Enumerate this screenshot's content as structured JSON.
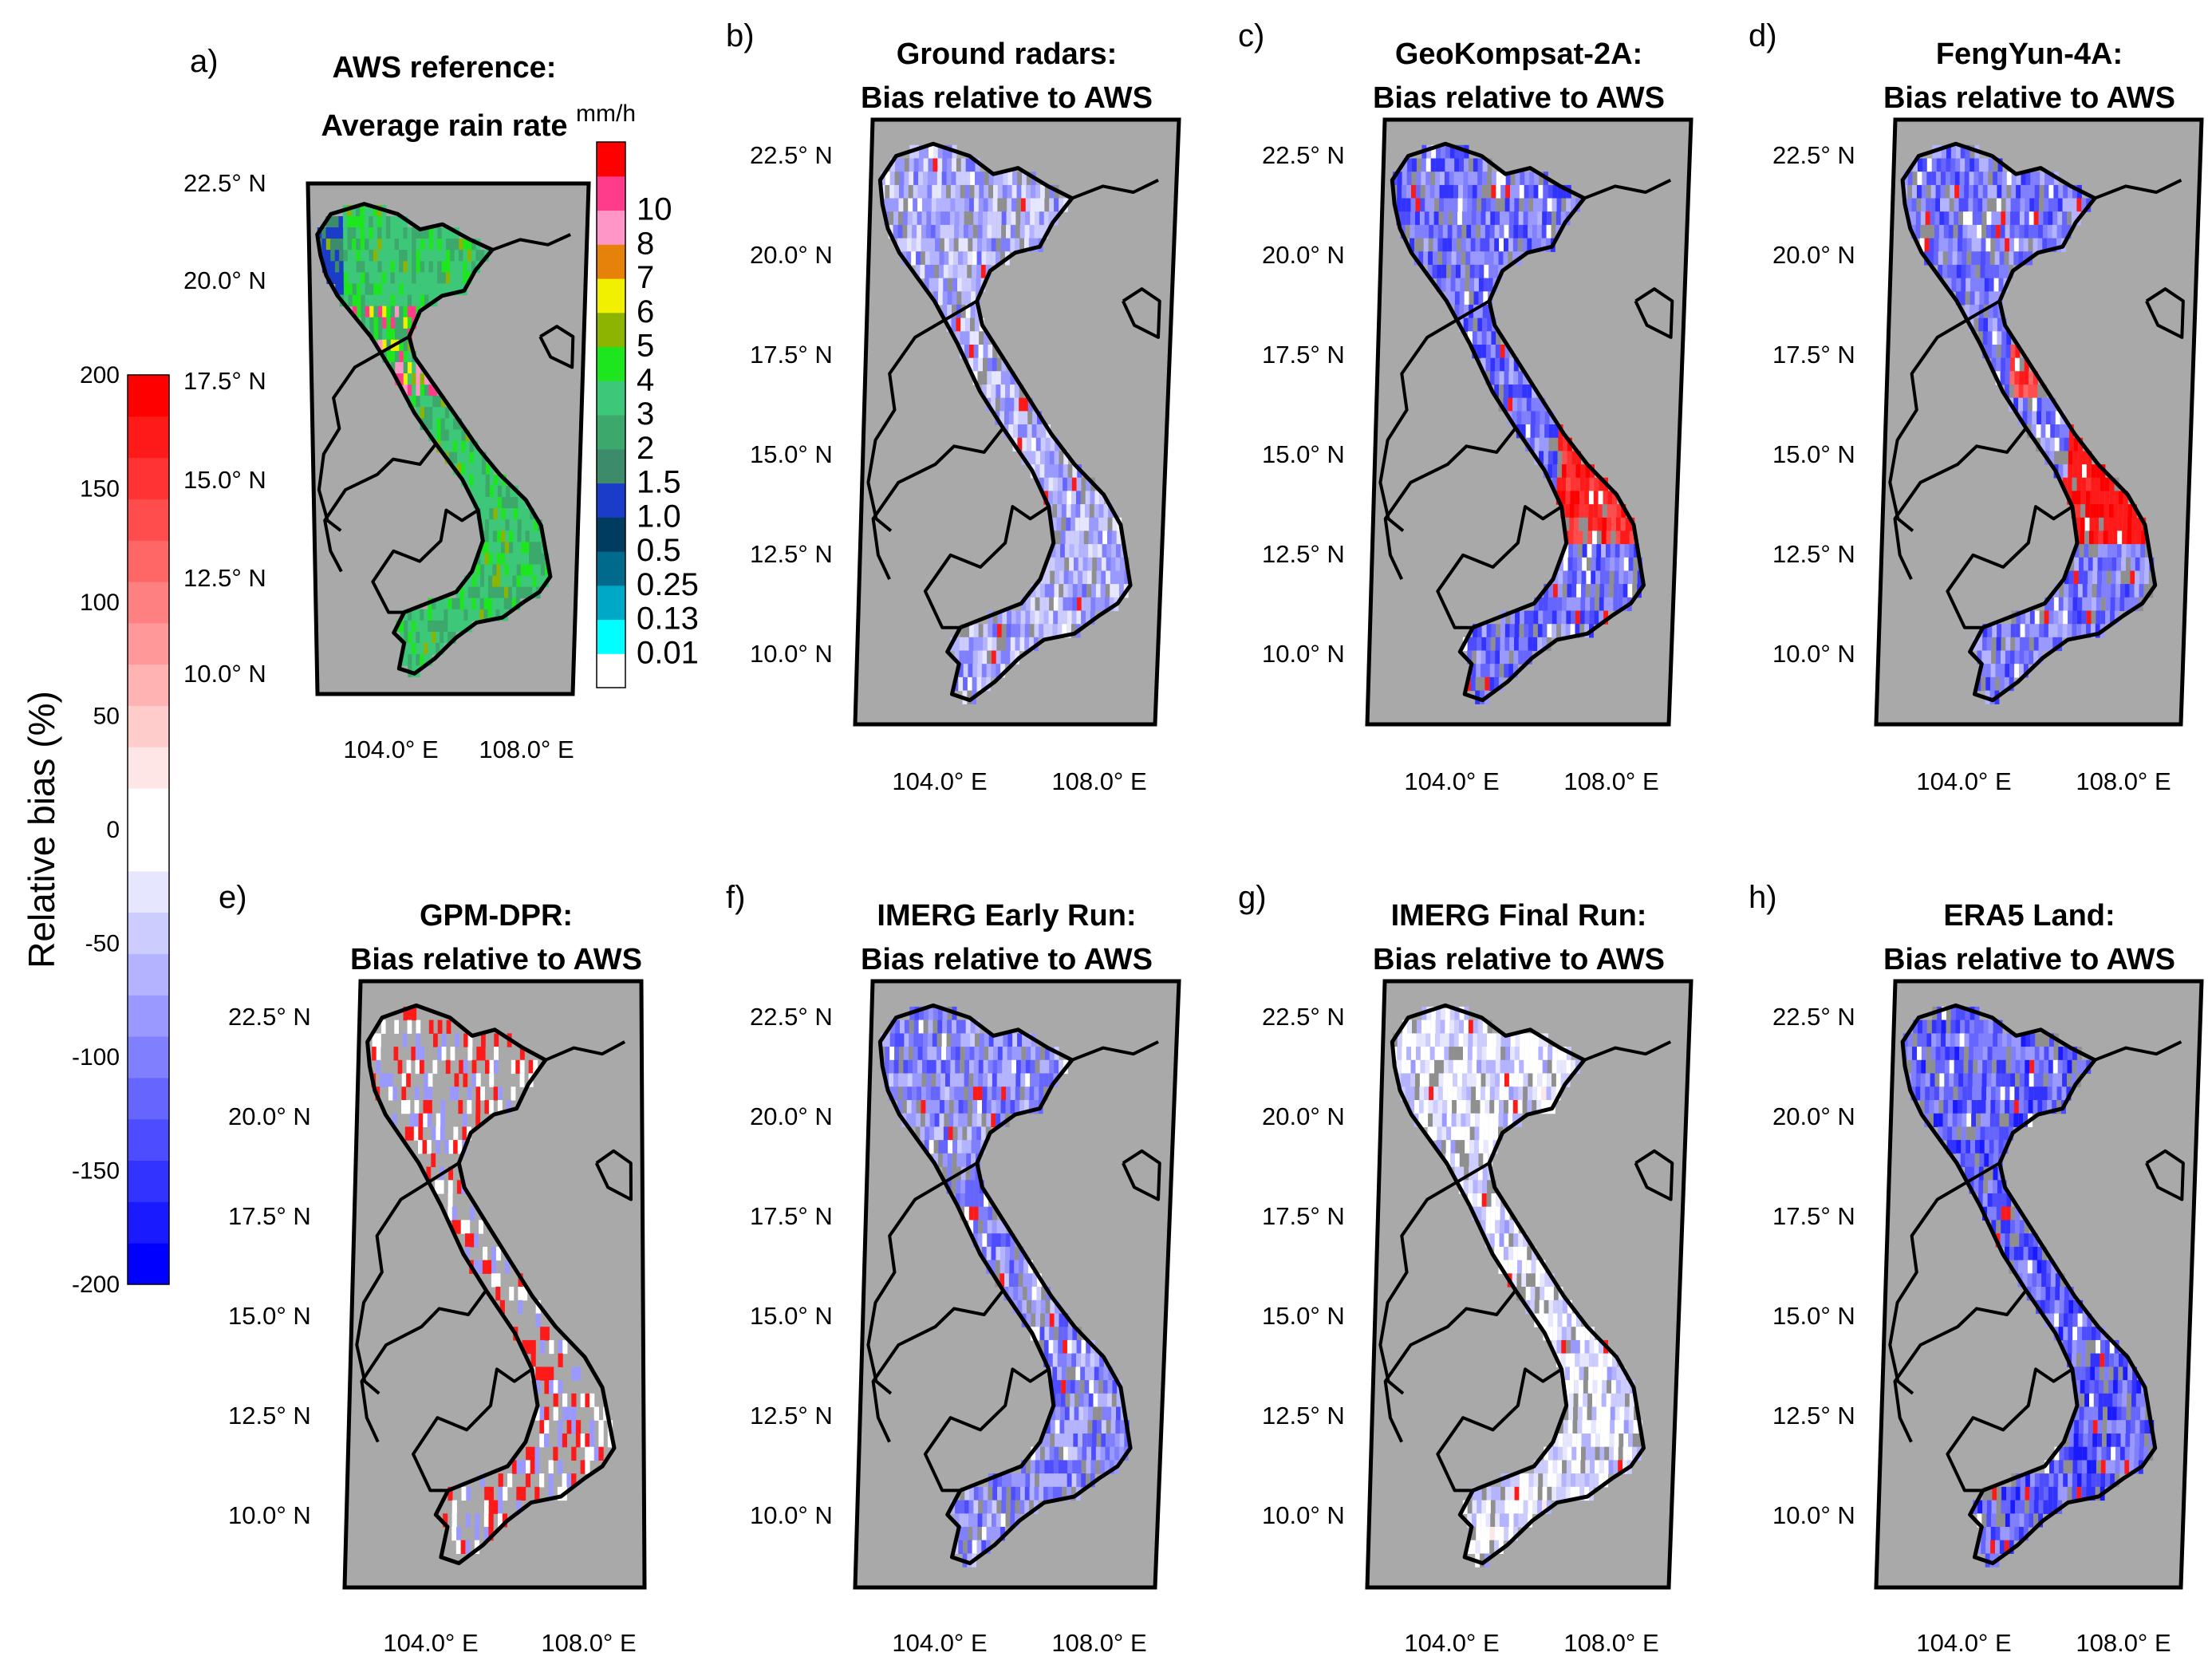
{
  "chart_data": {
    "type": "heatmap",
    "description_units": {
      "rain_rate": "mm/h",
      "bias": "%"
    },
    "bias_colorbar": {
      "label": "Relative bias (%)",
      "range": [
        -200,
        200
      ],
      "ticks": [
        "200",
        "150",
        "100",
        "50",
        "0",
        "-50",
        "-100",
        "-150",
        "-200"
      ],
      "colors": [
        "#0000ff",
        "#1a1aff",
        "#3333ff",
        "#4d4dff",
        "#6666ff",
        "#8080ff",
        "#9999ff",
        "#b3b3ff",
        "#ccccff",
        "#e6e6ff",
        "#ffffff",
        "#ffffff",
        "#ffe6e6",
        "#ffcccc",
        "#ffb3b3",
        "#ff9999",
        "#ff8080",
        "#ff6666",
        "#ff4d4d",
        "#ff3333",
        "#ff1a1a",
        "#ff0000"
      ]
    },
    "rain_colorbar": {
      "unit": "mm/h",
      "levels": [
        "0.01",
        "0.13",
        "0.25",
        "0.5",
        "1.0",
        "1.5",
        "2",
        "3",
        "4",
        "5",
        "6",
        "7",
        "8",
        "10"
      ],
      "colors": [
        "#ffffff",
        "#00ffff",
        "#00a8c8",
        "#006a8c",
        "#003c60",
        "#1a3cc8",
        "#3c8c6c",
        "#3ca86c",
        "#3cc878",
        "#1ee61e",
        "#8cb400",
        "#f0f000",
        "#e6820a",
        "#ff96c8",
        "#ff3c8c",
        "#ff0000"
      ]
    },
    "panels": [
      {
        "letter": "a)",
        "title": [
          "AWS reference:",
          "Average rain rate"
        ],
        "kind": "rain",
        "skew": 0.0
      },
      {
        "letter": "b)",
        "title": [
          "Ground radars:",
          "Bias relative to AWS"
        ],
        "kind": "bias",
        "bias_level": -0.35
      },
      {
        "letter": "c)",
        "title": [
          "GeoKompsat-2A:",
          "Bias relative to AWS"
        ],
        "kind": "bias",
        "bias_level": -0.6,
        "hotspot": "center"
      },
      {
        "letter": "d)",
        "title": [
          "FengYun-4A:",
          "Bias relative to AWS"
        ],
        "kind": "bias",
        "bias_level": -0.55,
        "hotspot": "center-strong"
      },
      {
        "letter": "e)",
        "title": [
          "GPM-DPR:",
          "Bias relative to AWS"
        ],
        "kind": "sparse",
        "bias_level": 0.3
      },
      {
        "letter": "f)",
        "title": [
          "IMERG Early Run:",
          "Bias relative to AWS"
        ],
        "kind": "bias",
        "bias_level": -0.5
      },
      {
        "letter": "g)",
        "title": [
          "IMERG Final Run:",
          "Bias relative to AWS"
        ],
        "kind": "bias",
        "bias_level": -0.15
      },
      {
        "letter": "h)",
        "title": [
          "ERA5 Land:",
          "Bias relative to AWS"
        ],
        "kind": "bias",
        "bias_level": -0.65
      }
    ],
    "lat_ticks": [
      "22.5° N",
      "20.0° N",
      "17.5° N",
      "15.0° N",
      "12.5° N",
      "10.0° N"
    ],
    "lon_ticks": [
      "104.0° E",
      "108.0° E"
    ]
  }
}
